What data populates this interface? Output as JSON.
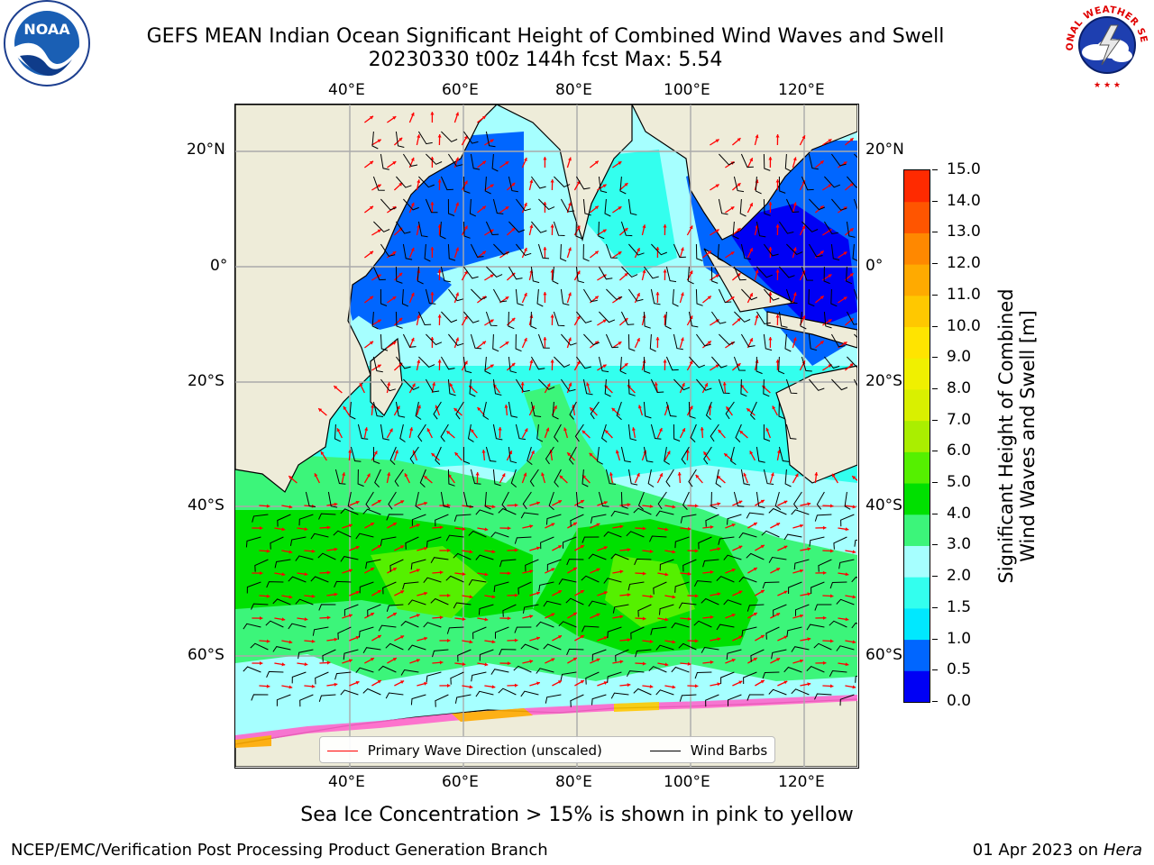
{
  "header": {
    "title_line1": "GEFS MEAN Indian Ocean Significant Height of Combined Wind Waves and Swell",
    "title_line2": "20230330 t00z 144h fcst   Max: 5.54"
  },
  "logos": {
    "left": {
      "text": "NOAA",
      "ring_text": "NATIONAL OCEANIC AND ATMOSPHERIC ADMINISTRATION · U.S. DEPARTMENT OF COMMERCE",
      "icon": "noaa-logo"
    },
    "right": {
      "ring_text": "NATIONAL WEATHER SERVICE",
      "icon": "nws-logo"
    }
  },
  "axes": {
    "lon_labels": [
      "40°E",
      "60°E",
      "80°E",
      "100°E",
      "120°E"
    ],
    "lat_labels": [
      "20°N",
      "0°",
      "20°S",
      "40°S",
      "60°S"
    ],
    "lon_range": [
      20,
      130
    ],
    "lat_range": [
      -73,
      27
    ],
    "grid": true
  },
  "colorbar": {
    "label": "Significant Height of Combined Wind Waves and Swell [m]",
    "label_line1": "Significant Height of Combined",
    "label_line2": "Wind Waves and Swell [m]",
    "ticks": [
      "15.0",
      "14.0",
      "13.0",
      "12.0",
      "11.0",
      "10.0",
      "9.0",
      "8.0",
      "7.0",
      "6.0",
      "5.0",
      "4.0",
      "3.0",
      "2.0",
      "1.5",
      "1.0",
      "0.5",
      "0.0"
    ],
    "colors": [
      "#0000f5",
      "#0066ff",
      "#00e8ff",
      "#33ffee",
      "#a6ffff",
      "#3cf57a",
      "#00e000",
      "#55f000",
      "#aaee00",
      "#d9f000",
      "#f0f000",
      "#ffe400",
      "#ffc800",
      "#ffaa00",
      "#ff8800",
      "#ff5500",
      "#ff2a00",
      "#ff0000"
    ]
  },
  "legend": {
    "wave_label": "Primary Wave Direction (unscaled)",
    "wave_color": "#ff0000",
    "wind_label": "Wind Barbs",
    "wind_color": "#000000"
  },
  "map_colors": {
    "land": "#eeecd9",
    "ice": "#ff66cc"
  },
  "chart_data": {
    "type": "heatmap",
    "title": "GEFS MEAN Indian Ocean Significant Height of Combined Wind Waves and Swell",
    "subtitle": "20230330 t00z 144h fcst   Max: 5.54",
    "max_value": 5.54,
    "units": "m",
    "colorbar_levels": [
      0.0,
      0.5,
      1.0,
      1.5,
      2.0,
      3.0,
      4.0,
      5.0,
      6.0,
      7.0,
      8.0,
      9.0,
      10.0,
      11.0,
      12.0,
      13.0,
      14.0,
      15.0
    ]
  },
  "notes": {
    "sea_ice": "Sea Ice Concentration > 15% is shown in pink to yellow"
  },
  "footer": {
    "left": "NCEP/EMC/Verification Post Processing Product Generation Branch",
    "right_date": "01 Apr 2023 on ",
    "right_host": "Hera"
  }
}
